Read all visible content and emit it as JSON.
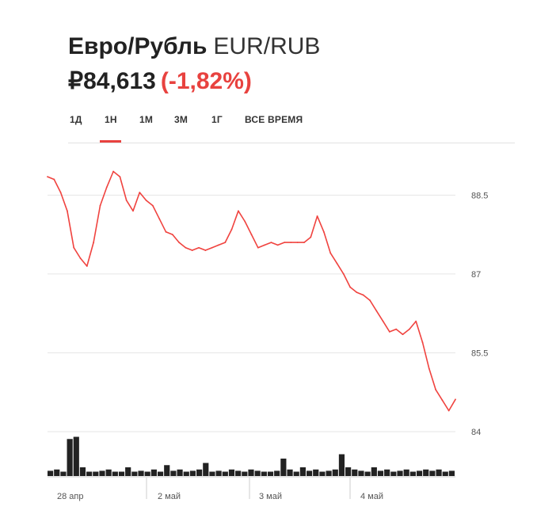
{
  "header": {
    "name": "Евро/Рубль",
    "ticker": "EUR/RUB",
    "price": "₽84,613",
    "change": "(-1,82%)"
  },
  "tabs": [
    {
      "label": "1Д",
      "active": false
    },
    {
      "label": "1Н",
      "active": true
    },
    {
      "label": "1М",
      "active": false
    },
    {
      "label": "3М",
      "active": false
    },
    {
      "label": "1Г",
      "active": false
    },
    {
      "label": "ВСЕ ВРЕМЯ",
      "active": false
    }
  ],
  "colors": {
    "accent": "#e8423f",
    "line": "#f0433f",
    "volume": "#222222",
    "grid": "#e6e6e6"
  },
  "chart_data": {
    "type": "line",
    "y_ticks": [
      "88.5",
      "87",
      "85.5",
      "84"
    ],
    "ylim": [
      84,
      89.5
    ],
    "x_labels": [
      "28 апр",
      "2 май",
      "3 май",
      "4 май"
    ],
    "series": [
      {
        "values": [
          88.85,
          88.8,
          88.55,
          88.2,
          87.5,
          87.3,
          87.15,
          87.6,
          88.3,
          88.65,
          88.95,
          88.85,
          88.4,
          88.2,
          88.55,
          88.4,
          88.3,
          88.05,
          87.8,
          87.75,
          87.6,
          87.5,
          87.45,
          87.5,
          87.45,
          87.5,
          87.55,
          87.6,
          87.85,
          88.2,
          88.0,
          87.75,
          87.5,
          87.55,
          87.6,
          87.55,
          87.6,
          87.6,
          87.6,
          87.6,
          87.7,
          88.1,
          87.8,
          87.4,
          87.2,
          87.0,
          86.75,
          86.65,
          86.6,
          86.5,
          86.3,
          86.1,
          85.9,
          85.95,
          85.85,
          85.95,
          86.1,
          85.7,
          85.2,
          84.8,
          84.6,
          84.4,
          84.613
        ],
        "volume": [
          0.12,
          0.15,
          0.1,
          0.85,
          0.9,
          0.2,
          0.1,
          0.1,
          0.12,
          0.15,
          0.1,
          0.1,
          0.2,
          0.1,
          0.12,
          0.1,
          0.15,
          0.1,
          0.25,
          0.12,
          0.15,
          0.1,
          0.12,
          0.15,
          0.3,
          0.1,
          0.12,
          0.1,
          0.15,
          0.12,
          0.1,
          0.15,
          0.12,
          0.1,
          0.1,
          0.12,
          0.4,
          0.15,
          0.1,
          0.2,
          0.12,
          0.15,
          0.1,
          0.12,
          0.15,
          0.5,
          0.2,
          0.15,
          0.12,
          0.1,
          0.2,
          0.12,
          0.15,
          0.1,
          0.12,
          0.15,
          0.1,
          0.12,
          0.15,
          0.12,
          0.15,
          0.1,
          0.12
        ]
      }
    ]
  }
}
